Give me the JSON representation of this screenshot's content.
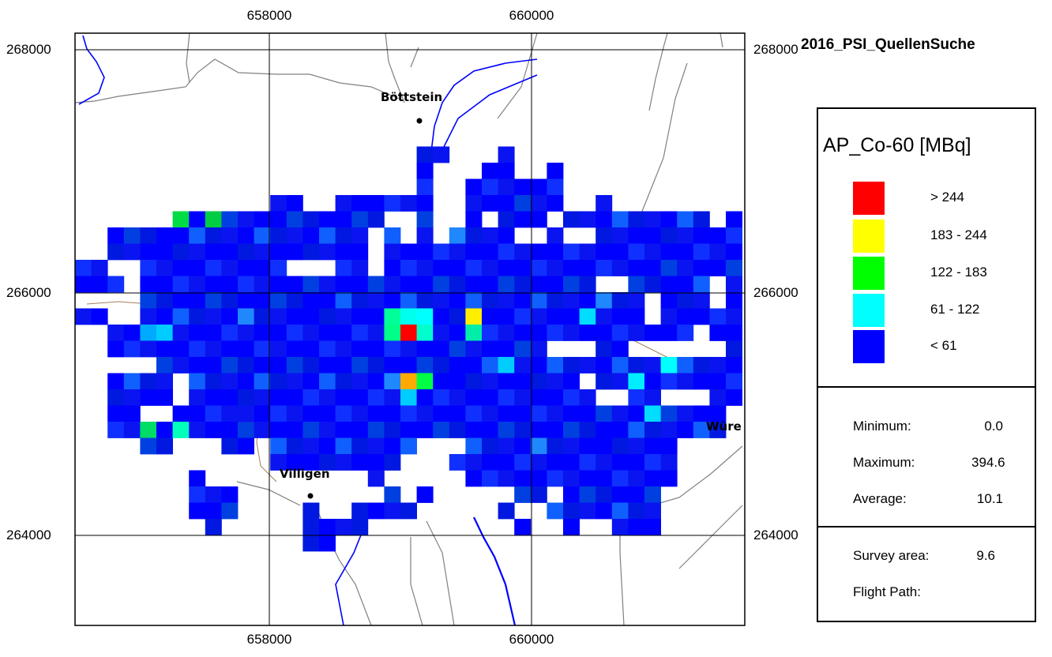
{
  "title": "2016_PSI_QuellenSuche",
  "axes": {
    "x_ticks_top": [
      "658000",
      "660000"
    ],
    "x_ticks_bottom": [
      "658000",
      "660000"
    ],
    "y_ticks_left": [
      "268000",
      "266000",
      "264000"
    ],
    "y_ticks_right": [
      "268000",
      "266000",
      "264000"
    ]
  },
  "places": {
    "boettstein": "Böttstein",
    "villigen": "Villigen",
    "wuerenlingen_partial": "Würe"
  },
  "legend": {
    "title": "AP_Co-60 [MBq]",
    "classes": [
      {
        "label": "> 244",
        "color": "#ff0000"
      },
      {
        "label": "183 - 244",
        "color": "#ffff00"
      },
      {
        "label": "122 - 183",
        "color": "#00ff00"
      },
      {
        "label": "61 - 122",
        "color": "#00ffff"
      },
      {
        "label": "< 61",
        "color": "#0000ff"
      }
    ]
  },
  "stats": {
    "minimum_label": "Minimum:",
    "minimum_value": "0.0",
    "maximum_label": "Maximum:",
    "maximum_value": "394.6",
    "average_label": "Average:",
    "average_value": "10.1",
    "survey_area_label": "Survey area:",
    "survey_area_value": "9.6",
    "flight_path_label": "Flight Path:"
  },
  "colors": {
    "raster_palette": [
      "#0000ff",
      "#0a14f0",
      "#0018e0",
      "#1030ff",
      "#0040e0",
      "#1060ff",
      "#2088ff",
      "#00ccff",
      "#00ff88",
      "#ff0000",
      "#ffcc00",
      "#ffff00",
      "#00ee00"
    ],
    "river": "#0000ff",
    "road": "#808080",
    "boundary": "#a08060"
  }
}
